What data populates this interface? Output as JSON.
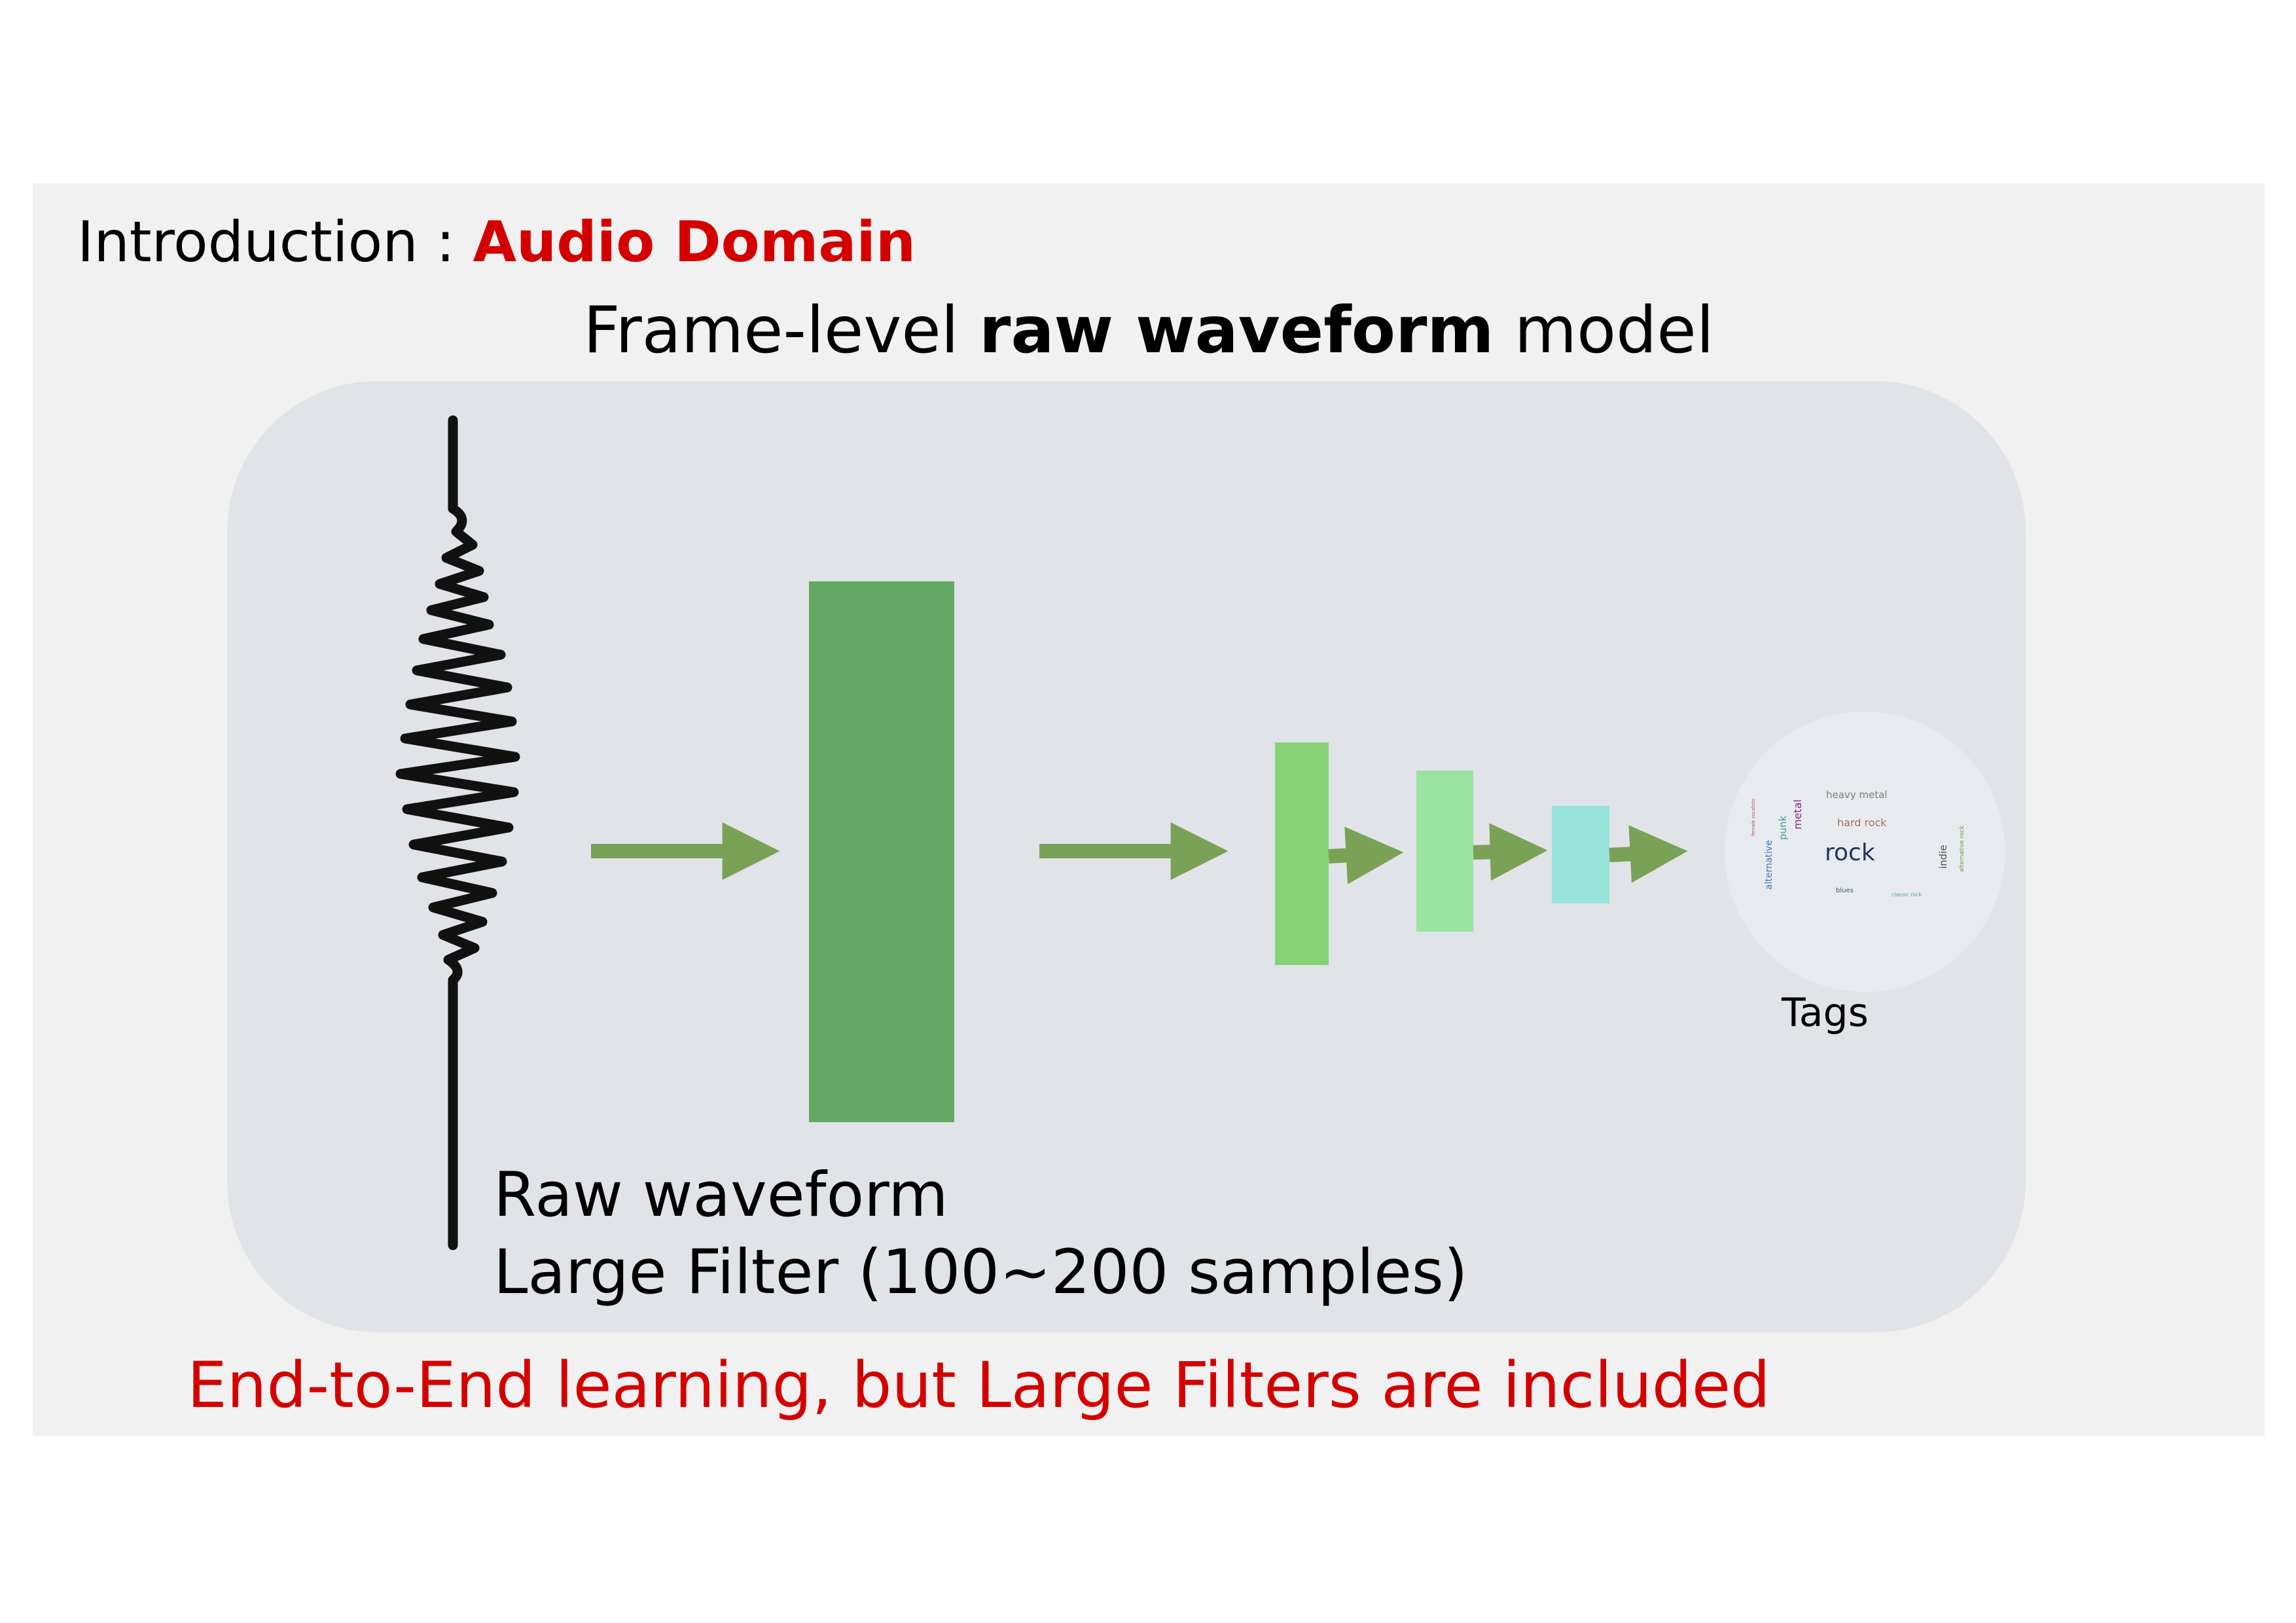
{
  "header": {
    "prefix": "Introduction : ",
    "accent": "Audio Domain"
  },
  "subtitle": {
    "pre": "Frame-level ",
    "bold": "raw waveform",
    "post": " model"
  },
  "caption": {
    "line1": "Raw waveform",
    "line2": "Large Filter (100~200 samples)"
  },
  "tags_label": "Tags",
  "tag_cloud": {
    "heavy_metal": "heavy metal",
    "hard_rock": "hard rock",
    "rock": "rock",
    "metal": "metal",
    "punk": "punk",
    "alternative": "alternative",
    "indie": "indie",
    "alternative_rock": "alternative rock",
    "female_vocalists": "female vocalists",
    "blues": "blues",
    "classic_rock": "classic rock"
  },
  "footer": "End-to-End learning, but Large Filters are included",
  "colors": {
    "accent_red": "#d40000",
    "arrow_green": "#7aa256",
    "large_filter": "#62a862",
    "layer1": "#86d275",
    "layer2": "#9be3a2",
    "layer3": "#98e2dc",
    "panel": "#e0e3e7"
  }
}
